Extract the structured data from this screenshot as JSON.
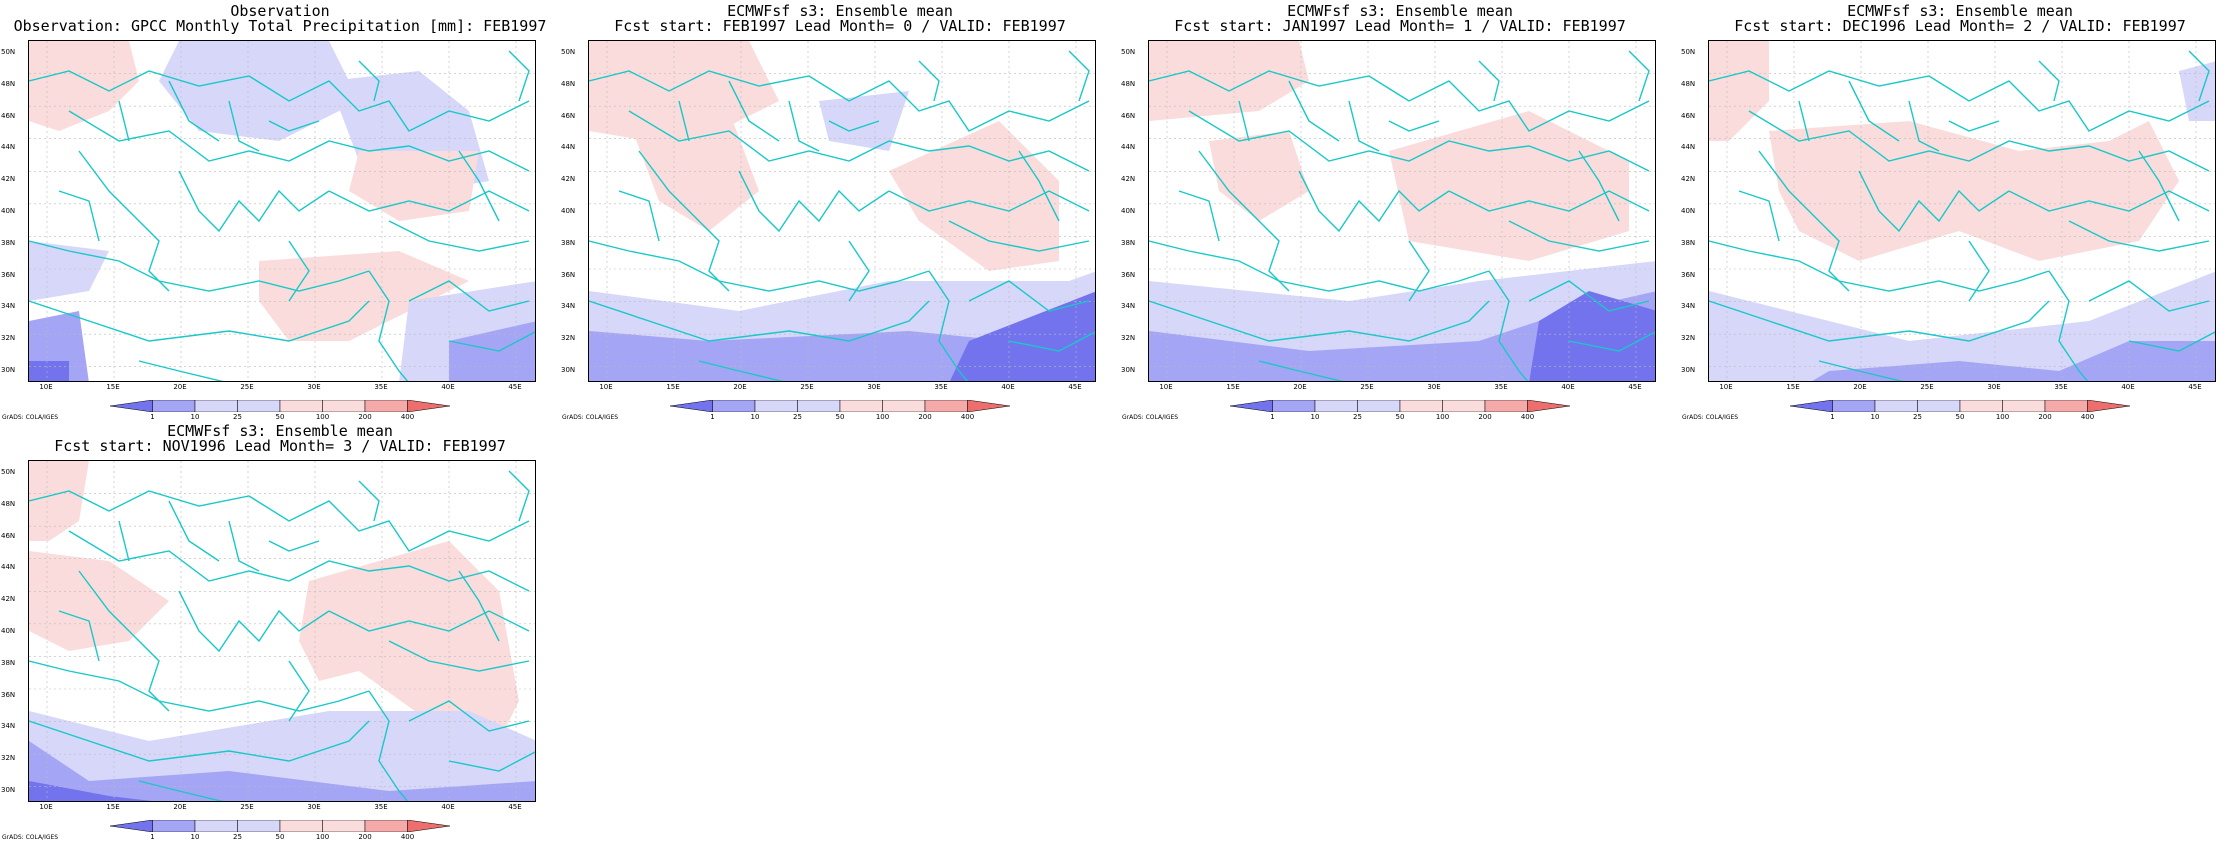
{
  "panels": [
    {
      "title1": "Observation",
      "title2": "Observation: GPCC Monthly Total Precipitation [mm]: FEB1997"
    },
    {
      "title1": "ECMWFsf s3: Ensemble mean",
      "title2": "Fcst start: FEB1997  Lead Month= 0 / VALID: FEB1997"
    },
    {
      "title1": "ECMWFsf s3: Ensemble mean",
      "title2": "Fcst start: JAN1997  Lead Month= 1 / VALID: FEB1997"
    },
    {
      "title1": "ECMWFsf s3: Ensemble mean",
      "title2": "Fcst start: DEC1996  Lead Month= 2 / VALID: FEB1997"
    },
    {
      "title1": "ECMWFsf s3: Ensemble mean",
      "title2": "Fcst start: NOV1996  Lead Month= 3 / VALID: FEB1997"
    }
  ],
  "lat_labels": [
    "50N",
    "48N",
    "46N",
    "44N",
    "42N",
    "40N",
    "38N",
    "36N",
    "34N",
    "32N",
    "30N"
  ],
  "lon_labels": [
    "10E",
    "15E",
    "20E",
    "25E",
    "30E",
    "35E",
    "40E",
    "45E"
  ],
  "legend_labels": [
    "1",
    "10",
    "25",
    "50",
    "100",
    "200",
    "400"
  ],
  "credit": "GrADS: COLA/IGES",
  "colors": {
    "coast": "#19c8c8",
    "blue_light": "#d7d7fa",
    "blue_mid": "#a5a5f5",
    "blue_dark": "#7373ee",
    "red_light": "#fadcdc",
    "red_mid": "#f5aaaa",
    "red_dark": "#ee6e6e",
    "grid": "#bbbbbb"
  }
}
